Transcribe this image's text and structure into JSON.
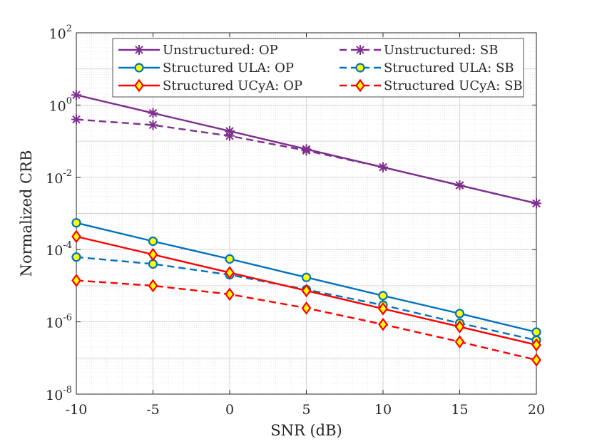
{
  "chart_data": {
    "type": "line",
    "title": "",
    "xlabel": "SNR (dB)",
    "ylabel": "Normalized CRB",
    "xlim": [
      -10,
      20
    ],
    "ylim_log10": [
      -8,
      2
    ],
    "yscale": "log",
    "grid": true,
    "legend_position": "top",
    "x": [
      -10,
      -5,
      0,
      5,
      10,
      15,
      20
    ],
    "x_tick_labels": [
      "-10",
      "-5",
      "0",
      "5",
      "10",
      "15",
      "20"
    ],
    "y_ticks": [
      {
        "base": "10",
        "exp": "2",
        "value": 100
      },
      {
        "base": "10",
        "exp": "0",
        "value": 1
      },
      {
        "base": "10",
        "exp": "-2",
        "value": 0.01
      },
      {
        "base": "10",
        "exp": "-4",
        "value": 0.0001
      },
      {
        "base": "10",
        "exp": "-6",
        "value": 1e-06
      },
      {
        "base": "10",
        "exp": "-8",
        "value": 1e-08
      }
    ],
    "series": [
      {
        "name": "Unstructured: OP",
        "color": "#7E2F8E",
        "dash": "solid",
        "marker": "star",
        "values": [
          1.9,
          0.6,
          0.19,
          0.06,
          0.019,
          0.006,
          0.0019
        ]
      },
      {
        "name": "Unstructured: SB",
        "color": "#7E2F8E",
        "dash": "dashed",
        "marker": "star",
        "values": [
          0.4,
          0.28,
          0.14,
          0.055,
          0.019,
          0.006,
          0.0019
        ]
      },
      {
        "name": "Structured ULA: OP",
        "color": "#0072BD",
        "dash": "solid",
        "marker": "circle",
        "values": [
          0.00055,
          0.00017,
          5.5e-05,
          1.7e-05,
          5.3e-06,
          1.7e-06,
          5.2e-07
        ]
      },
      {
        "name": "Structured ULA: SB",
        "color": "#0072BD",
        "dash": "dashed",
        "marker": "circle",
        "values": [
          6.2e-05,
          4e-05,
          2e-05,
          7.8e-06,
          2.9e-06,
          9.2e-07,
          3.1e-07
        ]
      },
      {
        "name": "Structured UCyA: OP",
        "color": "#FF0000",
        "dash": "solid",
        "marker": "diamond",
        "values": [
          0.00023,
          7.3e-05,
          2.3e-05,
          7.3e-06,
          2.3e-06,
          7.3e-07,
          2.3e-07
        ]
      },
      {
        "name": "Structured UCyA: SB",
        "color": "#FF0000",
        "dash": "dashed",
        "marker": "diamond",
        "values": [
          1.4e-05,
          1e-05,
          5.8e-06,
          2.4e-06,
          8.5e-07,
          2.8e-07,
          8.8e-08
        ]
      }
    ],
    "marker_face_color": "#FFFF00"
  }
}
